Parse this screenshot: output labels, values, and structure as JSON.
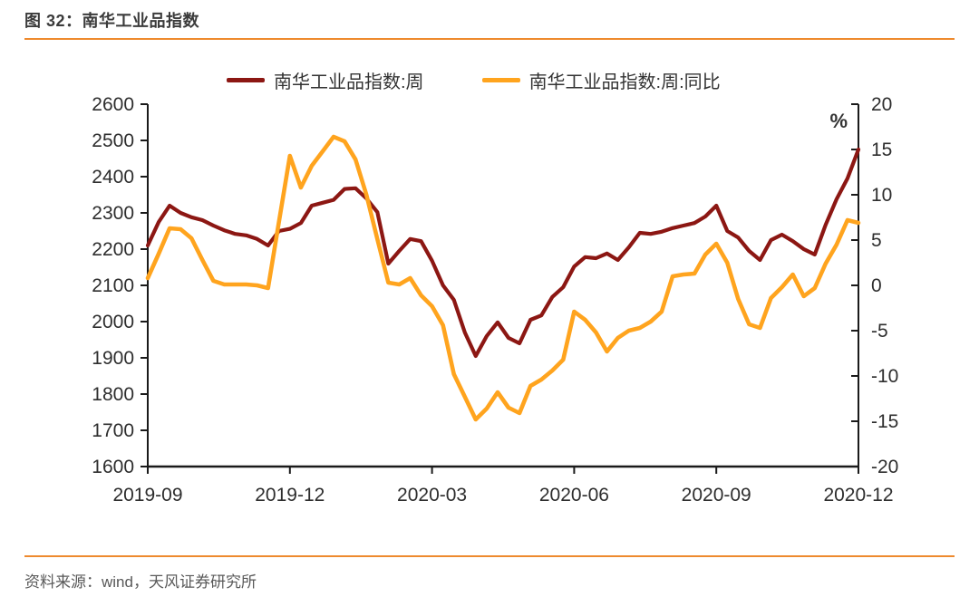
{
  "figure": {
    "title": "图 32：南华工业品指数",
    "source": "资料来源：wind，天风证券研究所",
    "accent_rule_color": "#EE8A2E"
  },
  "chart_data": {
    "type": "line",
    "frequency": "weekly",
    "title": "南华工业品指数",
    "legend_position": "top",
    "grid": false,
    "x_axis": {
      "start": "2019-09",
      "end": "2020-12",
      "tick_labels": [
        "2019-09",
        "2019-12",
        "2020-03",
        "2020-06",
        "2020-09",
        "2020-12"
      ]
    },
    "left_axis": {
      "min": 1600,
      "max": 2600,
      "ticks": [
        2600,
        2500,
        2400,
        2300,
        2200,
        2100,
        2000,
        1900,
        1800,
        1700,
        1600
      ]
    },
    "right_axis": {
      "unit": "%",
      "min": -20,
      "max": 20,
      "ticks": [
        20,
        15,
        10,
        5,
        0,
        -5,
        -10,
        -15,
        -20
      ]
    },
    "series": [
      {
        "name": "南华工业品指数:周",
        "axis": "left",
        "color": "#8C1713",
        "values": [
          2210,
          2275,
          2320,
          2300,
          2288,
          2280,
          2265,
          2252,
          2242,
          2238,
          2228,
          2210,
          2250,
          2256,
          2272,
          2320,
          2328,
          2336,
          2366,
          2368,
          2340,
          2302,
          2160,
          2195,
          2228,
          2222,
          2168,
          2100,
          2060,
          1970,
          1905,
          1960,
          1998,
          1955,
          1940,
          2005,
          2017,
          2068,
          2095,
          2152,
          2178,
          2175,
          2188,
          2170,
          2205,
          2245,
          2242,
          2248,
          2258,
          2265,
          2272,
          2290,
          2320,
          2250,
          2232,
          2195,
          2170,
          2225,
          2240,
          2222,
          2200,
          2185,
          2267,
          2338,
          2395,
          2475
        ]
      },
      {
        "name": "南华工业品指数:周:同比",
        "axis": "right",
        "color": "#FFA41E",
        "values": [
          0.8,
          3.5,
          6.3,
          6.2,
          5.2,
          2.8,
          0.5,
          0.1,
          0.1,
          0.1,
          0.0,
          -0.3,
          7.0,
          14.3,
          10.8,
          13.2,
          14.8,
          16.4,
          15.9,
          13.9,
          10.0,
          5.1,
          0.3,
          0.1,
          0.8,
          -1.1,
          -2.3,
          -4.4,
          -9.8,
          -12.3,
          -14.8,
          -13.6,
          -11.8,
          -13.5,
          -14.1,
          -11.1,
          -10.4,
          -9.4,
          -8.2,
          -2.9,
          -3.8,
          -5.2,
          -7.3,
          -5.8,
          -5.0,
          -4.7,
          -4.0,
          -2.9,
          1.0,
          1.2,
          1.3,
          3.4,
          4.6,
          2.5,
          -1.5,
          -4.3,
          -4.7,
          -1.4,
          -0.2,
          1.2,
          -1.2,
          -0.3,
          2.4,
          4.5,
          7.2,
          6.9
        ]
      }
    ]
  }
}
